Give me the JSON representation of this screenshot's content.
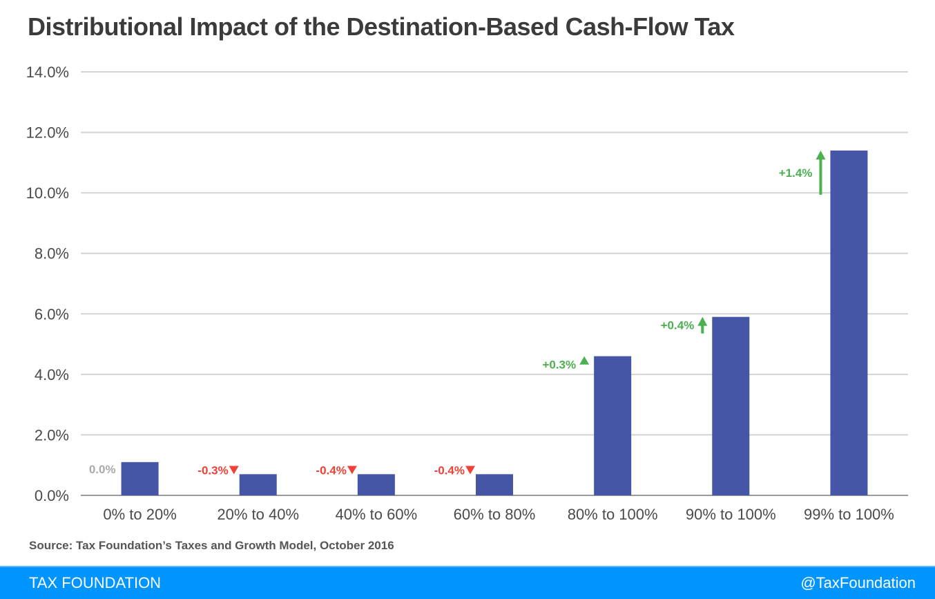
{
  "chart_data": {
    "type": "bar",
    "title": "Distributional Impact of the Destination-Based Cash-Flow Tax",
    "xlabel": "",
    "ylabel": "",
    "ylim": [
      0,
      14
    ],
    "yticks": [
      0,
      2,
      4,
      6,
      8,
      10,
      12,
      14
    ],
    "ytick_labels": [
      "0.0%",
      "2.0%",
      "4.0%",
      "6.0%",
      "8.0%",
      "10.0%",
      "12.0%",
      "14.0%"
    ],
    "grid": true,
    "categories": [
      "0% to 20%",
      "20% to 40%",
      "40% to 60%",
      "60% to 80%",
      "80% to 100%",
      "90% to 100%",
      "99% to 100%"
    ],
    "values": [
      1.1,
      0.7,
      0.7,
      0.7,
      4.6,
      5.9,
      11.4
    ],
    "annotations": [
      {
        "text": "0.0%",
        "direction": "none"
      },
      {
        "text": "-0.3%",
        "direction": "down"
      },
      {
        "text": "-0.4%",
        "direction": "down"
      },
      {
        "text": "-0.4%",
        "direction": "down"
      },
      {
        "text": "+0.3%",
        "direction": "up"
      },
      {
        "text": "+0.4%",
        "direction": "up"
      },
      {
        "text": "+1.4%",
        "direction": "up"
      }
    ],
    "colors": {
      "bar": "#4456a5",
      "up": "#4caf50",
      "down": "#ef4136",
      "neutral": "#aaaaaa",
      "grid": "#d4d4d4",
      "axis": "#9a9a9a",
      "tick": "#4a4a4a"
    }
  },
  "source": "Source: Tax Foundation’s Taxes and Growth Model, October 2016",
  "footer": {
    "left": "TAX FOUNDATION",
    "right": "@TaxFoundation"
  }
}
